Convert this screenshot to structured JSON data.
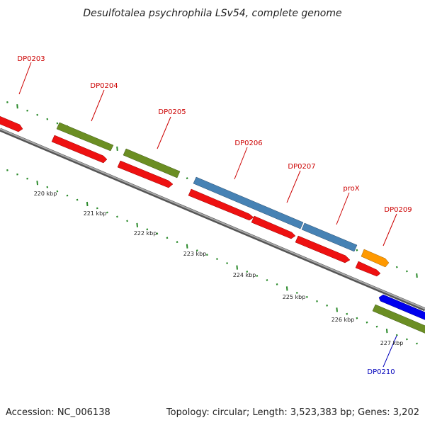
{
  "title": "Desulfotalea psychrophila LSv54, complete genome",
  "footer": {
    "accession": "Accession: NC_006138",
    "summary": "Topology: circular; Length: 3,523,383 bp; Genes: 3,202"
  },
  "colors": {
    "forward_label": "#cc0000",
    "reverse_label": "#0000bb",
    "backbone": "#888888",
    "dots": "#2a8a2a",
    "cds": "#ee1111",
    "gene_green": "#6b8e23",
    "gene_blue": "#4682b4",
    "gene_orange": "#ff9900",
    "gene_darkblue": "#0000ee"
  },
  "kbp_ticks": [
    {
      "value": 220,
      "label": "220 kbp"
    },
    {
      "value": 221,
      "label": "221 kbp"
    },
    {
      "value": 222,
      "label": "222 kbp"
    },
    {
      "value": 223,
      "label": "223 kbp"
    },
    {
      "value": 224,
      "label": "224 kbp"
    },
    {
      "value": 225,
      "label": "225 kbp"
    },
    {
      "value": 226,
      "label": "226 kbp"
    },
    {
      "value": 227,
      "label": "227 kbp"
    }
  ],
  "genes": [
    {
      "name": "DP0203",
      "strand": "forward"
    },
    {
      "name": "DP0204",
      "strand": "forward"
    },
    {
      "name": "DP0205",
      "strand": "forward"
    },
    {
      "name": "DP0206",
      "strand": "forward"
    },
    {
      "name": "DP0207",
      "strand": "forward"
    },
    {
      "name": "proX",
      "strand": "forward"
    },
    {
      "name": "DP0209",
      "strand": "forward"
    },
    {
      "name": "DP0210",
      "strand": "reverse"
    }
  ]
}
